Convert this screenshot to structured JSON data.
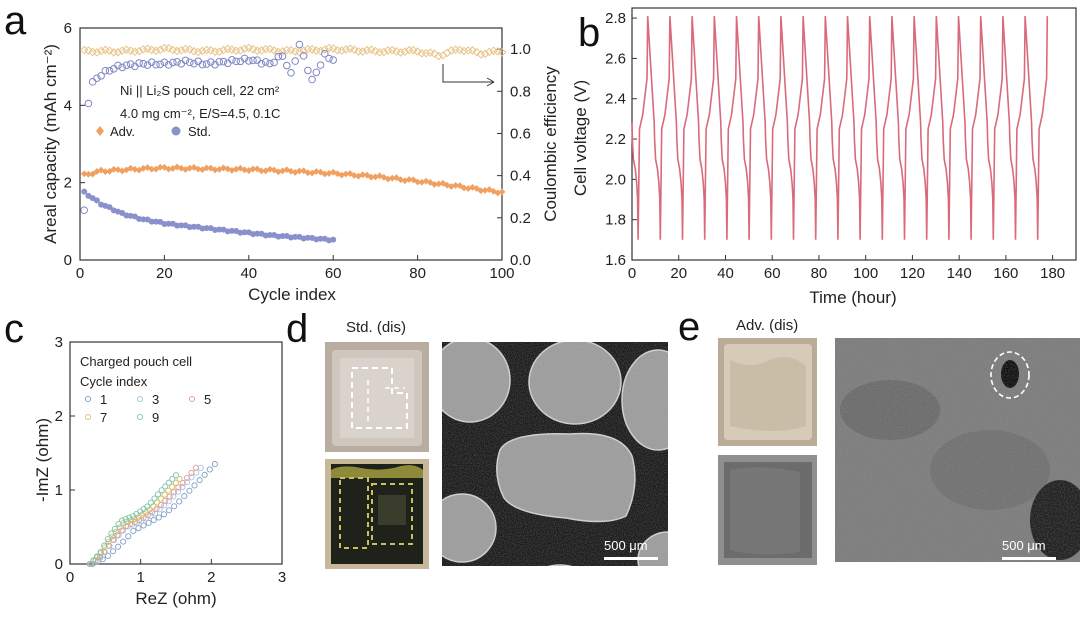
{
  "panels": {
    "a": {
      "letter": "a"
    },
    "b": {
      "letter": "b"
    },
    "c": {
      "letter": "c"
    },
    "d": {
      "letter": "d",
      "label": "Std. (dis)",
      "scalebar": "500 μm"
    },
    "e": {
      "letter": "e",
      "label": "Adv. (dis)",
      "scalebar": "500 μm"
    }
  },
  "colors": {
    "adv": "#f0a060",
    "std": "#8a90cc",
    "ce_adv": "#e8c48a",
    "ce_std": "#8088c4",
    "voltage": "#d96a7a",
    "eis": [
      "#7fa0c8",
      "#9ec4e0",
      "#e89a9a",
      "#d8c060",
      "#7ec4b0"
    ]
  },
  "chart_data": [
    {
      "panel": "a",
      "type": "scatter",
      "xlabel": "Cycle index",
      "ylabel": "Areal capacity (mAh cm⁻²)",
      "y2label": "Coulombic efficiency",
      "xlim": [
        0,
        100
      ],
      "ylim": [
        0,
        6
      ],
      "y2lim": [
        0.0,
        1.1
      ],
      "xticks": [
        "0",
        "20",
        "40",
        "60",
        "80",
        "100"
      ],
      "yticks": [
        "0",
        "2",
        "4",
        "6"
      ],
      "y2ticks": [
        "0.0",
        "0.2",
        "0.4",
        "0.6",
        "0.8",
        "1.0"
      ],
      "annotation_lines": [
        "Ni || Li₂S pouch cell, 22 cm²",
        "4.0 mg cm⁻², E/S=4.5, 0.1C"
      ],
      "legend": [
        "Adv.",
        "Std."
      ],
      "series": [
        {
          "name": "Adv.",
          "axis": "capacity",
          "x": [
            1,
            5,
            10,
            15,
            20,
            25,
            30,
            35,
            40,
            45,
            50,
            55,
            60,
            65,
            70,
            75,
            80,
            85,
            90,
            95,
            100
          ],
          "y": [
            2.2,
            2.3,
            2.33,
            2.36,
            2.38,
            2.37,
            2.36,
            2.35,
            2.34,
            2.32,
            2.3,
            2.27,
            2.24,
            2.2,
            2.16,
            2.1,
            2.04,
            1.97,
            1.9,
            1.82,
            1.75
          ]
        },
        {
          "name": "Std.",
          "axis": "capacity",
          "x": [
            1,
            3,
            5,
            8,
            10,
            15,
            20,
            25,
            30,
            35,
            40,
            45,
            50,
            55,
            60
          ],
          "y": [
            1.75,
            1.6,
            1.45,
            1.3,
            1.2,
            1.05,
            0.95,
            0.88,
            0.82,
            0.76,
            0.7,
            0.64,
            0.6,
            0.56,
            0.52
          ]
        },
        {
          "name": "Adv. CE",
          "axis": "ce",
          "x": [
            1,
            10,
            20,
            30,
            40,
            50,
            60,
            70,
            80,
            85,
            90,
            95,
            100
          ],
          "y": [
            0.99,
            0.99,
            1.0,
            0.99,
            1.0,
            0.99,
            1.0,
            0.99,
            0.99,
            0.97,
            1.0,
            0.98,
            0.99
          ]
        },
        {
          "name": "Std. CE",
          "axis": "ce",
          "x": [
            1,
            2,
            3,
            5,
            8,
            10,
            15,
            20,
            25,
            30,
            35,
            40,
            45,
            48,
            50,
            52,
            55,
            58,
            60
          ],
          "y": [
            0.23,
            0.75,
            0.84,
            0.88,
            0.91,
            0.92,
            0.93,
            0.93,
            0.94,
            0.93,
            0.94,
            0.95,
            0.93,
            0.97,
            0.88,
            1.02,
            0.85,
            0.97,
            0.95
          ]
        }
      ]
    },
    {
      "panel": "b",
      "type": "line",
      "xlabel": "Time (hour)",
      "ylabel": "Cell voltage (V)",
      "xlim": [
        0,
        190
      ],
      "ylim": [
        1.6,
        2.85
      ],
      "xticks": [
        "0",
        "20",
        "40",
        "60",
        "80",
        "100",
        "120",
        "140",
        "160",
        "180"
      ],
      "yticks": [
        "1.6",
        "1.8",
        "2.0",
        "2.2",
        "2.4",
        "2.6",
        "2.8"
      ],
      "cycles": 19,
      "cycle_period_h": 9.5,
      "discharge_profile": [
        [
          0,
          2.28
        ],
        [
          0.15,
          2.2
        ],
        [
          0.6,
          2.1
        ],
        [
          1.4,
          2.05
        ],
        [
          2.0,
          1.98
        ],
        [
          2.4,
          1.9
        ],
        [
          2.6,
          1.7
        ]
      ],
      "charge_profile": [
        [
          2.6,
          1.7
        ],
        [
          3.2,
          2.25
        ],
        [
          4.6,
          2.32
        ],
        [
          5.6,
          2.42
        ],
        [
          6.4,
          2.5
        ],
        [
          6.7,
          2.81
        ]
      ]
    },
    {
      "panel": "c",
      "type": "scatter",
      "xlabel": "ReZ (ohm)",
      "ylabel": "-ImZ (ohm)",
      "xlim": [
        0,
        3
      ],
      "ylim": [
        0,
        3
      ],
      "xticks": [
        "0",
        "1",
        "2",
        "3"
      ],
      "yticks": [
        "0",
        "1",
        "2",
        "3"
      ],
      "legend_title": [
        "Charged pouch cell",
        "Cycle index"
      ],
      "series": [
        {
          "name": "1",
          "x": [
            0.32,
            0.5,
            0.7,
            0.9,
            1.1,
            1.3,
            1.5,
            1.7,
            1.9,
            2.05
          ],
          "y": [
            0.0,
            0.08,
            0.25,
            0.45,
            0.55,
            0.65,
            0.8,
            1.0,
            1.2,
            1.35
          ]
        },
        {
          "name": "3",
          "x": [
            0.3,
            0.45,
            0.6,
            0.8,
            1.0,
            1.2,
            1.4,
            1.6,
            1.85
          ],
          "y": [
            0.0,
            0.1,
            0.3,
            0.5,
            0.58,
            0.68,
            0.85,
            1.05,
            1.3
          ]
        },
        {
          "name": "5",
          "x": [
            0.3,
            0.45,
            0.6,
            0.8,
            1.0,
            1.2,
            1.4,
            1.6,
            1.78
          ],
          "y": [
            0.0,
            0.12,
            0.32,
            0.52,
            0.6,
            0.72,
            0.9,
            1.1,
            1.3
          ]
        },
        {
          "name": "7",
          "x": [
            0.28,
            0.42,
            0.58,
            0.75,
            0.95,
            1.15,
            1.35,
            1.55
          ],
          "y": [
            0.0,
            0.12,
            0.35,
            0.55,
            0.62,
            0.75,
            0.95,
            1.15
          ]
        },
        {
          "name": "9",
          "x": [
            0.28,
            0.42,
            0.56,
            0.72,
            0.9,
            1.1,
            1.3,
            1.5
          ],
          "y": [
            0.0,
            0.14,
            0.38,
            0.58,
            0.65,
            0.78,
            1.0,
            1.2
          ]
        }
      ]
    }
  ]
}
